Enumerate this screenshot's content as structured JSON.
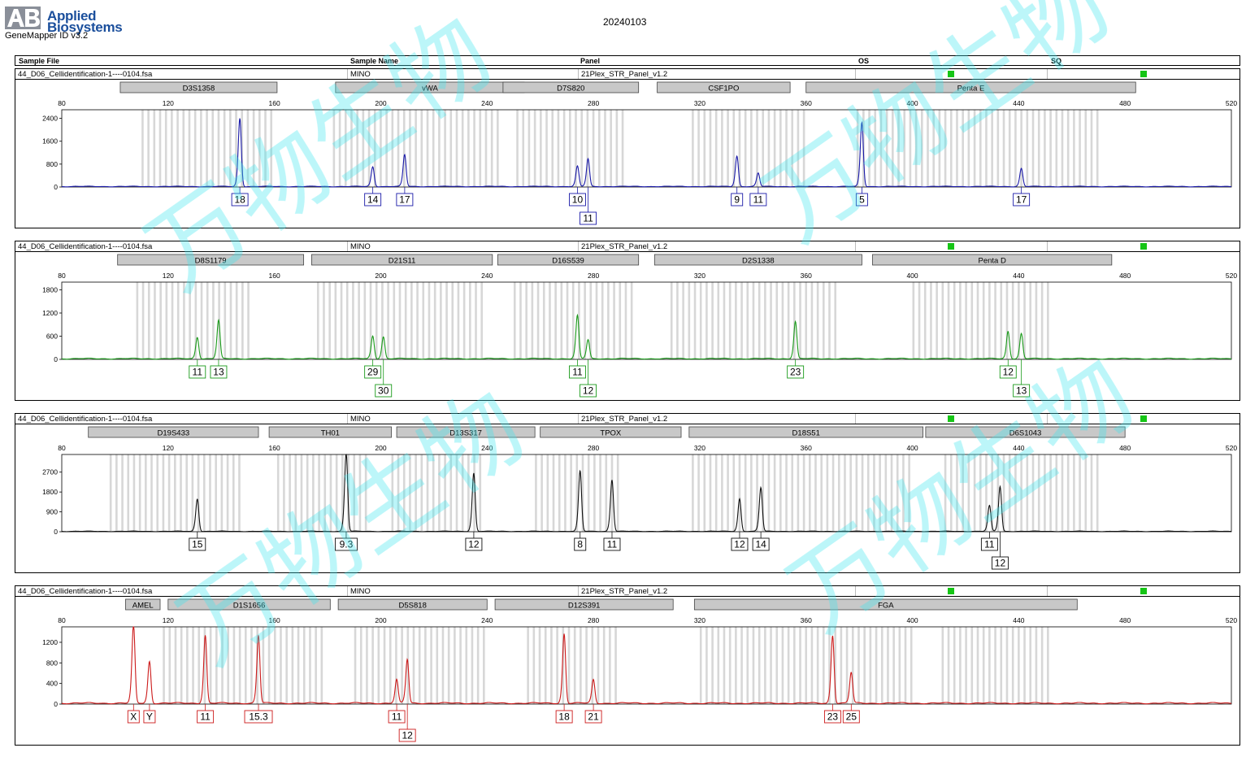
{
  "header": {
    "brand_line1": "Applied",
    "brand_line2": "Biosystems",
    "software": "GeneMapper ID v3.2",
    "date": "20240103"
  },
  "columns": {
    "sample_file": "Sample File",
    "sample_name": "Sample Name",
    "panel": "Panel",
    "os": "OS",
    "sq": "SQ"
  },
  "watermark": "万物生物",
  "colors": {
    "blue": "#1a1aa8",
    "green": "#1a9a1a",
    "black": "#111111",
    "red": "#cc1a1a",
    "flag": "#16c516"
  },
  "chart_data": [
    {
      "type": "line",
      "dye": "blue",
      "sample_file": "44_D06_Cellidentification-1----0104.fsa",
      "sample_name": "MINO",
      "panel": "21Plex_STR_Panel_v1.2",
      "xlim": [
        80,
        520
      ],
      "x_ticks": [
        80,
        120,
        160,
        200,
        240,
        280,
        320,
        360,
        400,
        440,
        480,
        520
      ],
      "ylim": [
        0,
        2700
      ],
      "y_ticks": [
        0,
        800,
        1600,
        2400
      ],
      "markers": [
        {
          "name": "D3S1358",
          "start": 102,
          "end": 161
        },
        {
          "name": "vWA",
          "start": 183,
          "end": 254
        },
        {
          "name": "D7S820",
          "start": 246,
          "end": 297
        },
        {
          "name": "CSF1PO",
          "start": 304,
          "end": 354
        },
        {
          "name": "Penta E",
          "start": 360,
          "end": 484
        }
      ],
      "bin_ranges": [
        [
          110,
          160
        ],
        [
          182,
          244
        ],
        [
          251,
          292
        ],
        [
          317,
          359
        ],
        [
          379,
          470
        ]
      ],
      "peaks": [
        {
          "allele": "18",
          "size": 147,
          "height": 2350
        },
        {
          "allele": "14",
          "size": 197,
          "height": 680
        },
        {
          "allele": "17",
          "size": 209,
          "height": 1100
        },
        {
          "allele": "10",
          "size": 274,
          "height": 700
        },
        {
          "allele": "11",
          "size": 278,
          "height": 950
        },
        {
          "allele": "9",
          "size": 334,
          "height": 1050
        },
        {
          "allele": "11",
          "size": 342,
          "height": 460
        },
        {
          "allele": "5",
          "size": 381,
          "height": 2200
        },
        {
          "allele": "17",
          "size": 441,
          "height": 620
        }
      ]
    },
    {
      "type": "line",
      "dye": "green",
      "sample_file": "44_D06_Cellidentification-1----0104.fsa",
      "sample_name": "MINO",
      "panel": "21Plex_STR_Panel_v1.2",
      "xlim": [
        80,
        520
      ],
      "x_ticks": [
        80,
        120,
        160,
        200,
        240,
        280,
        320,
        360,
        400,
        440,
        480,
        520
      ],
      "ylim": [
        0,
        2000
      ],
      "y_ticks": [
        0,
        600,
        1200,
        1800
      ],
      "markers": [
        {
          "name": "D8S1179",
          "start": 101,
          "end": 171
        },
        {
          "name": "D21S11",
          "start": 174,
          "end": 242
        },
        {
          "name": "D16S539",
          "start": 244,
          "end": 297
        },
        {
          "name": "D2S1338",
          "start": 303,
          "end": 381
        },
        {
          "name": "Penta D",
          "start": 385,
          "end": 475
        }
      ],
      "bin_ranges": [
        [
          108,
          150
        ],
        [
          176,
          238
        ],
        [
          250,
          295
        ],
        [
          309,
          372
        ],
        [
          400,
          452
        ]
      ],
      "peaks": [
        {
          "allele": "11",
          "size": 131,
          "height": 550
        },
        {
          "allele": "13",
          "size": 139,
          "height": 980
        },
        {
          "allele": "29",
          "size": 197,
          "height": 580
        },
        {
          "allele": "30",
          "size": 201,
          "height": 560
        },
        {
          "allele": "11",
          "size": 274,
          "height": 1100
        },
        {
          "allele": "12",
          "size": 278,
          "height": 480
        },
        {
          "allele": "23",
          "size": 356,
          "height": 950
        },
        {
          "allele": "12",
          "size": 436,
          "height": 700
        },
        {
          "allele": "13",
          "size": 441,
          "height": 640
        }
      ]
    },
    {
      "type": "line",
      "dye": "black",
      "sample_file": "44_D06_Cellidentification-1----0104.fsa",
      "sample_name": "MINO",
      "panel": "21Plex_STR_Panel_v1.2",
      "xlim": [
        80,
        520
      ],
      "x_ticks": [
        80,
        120,
        160,
        200,
        240,
        280,
        320,
        360,
        400,
        440,
        480,
        520
      ],
      "ylim": [
        0,
        3500
      ],
      "y_ticks": [
        0,
        900,
        1800,
        2700
      ],
      "markers": [
        {
          "name": "D19S433",
          "start": 90,
          "end": 154
        },
        {
          "name": "TH01",
          "start": 158,
          "end": 204
        },
        {
          "name": "D13S317",
          "start": 206,
          "end": 258
        },
        {
          "name": "TPOX",
          "start": 260,
          "end": 313
        },
        {
          "name": "D18S51",
          "start": 316,
          "end": 404
        },
        {
          "name": "D6S1043",
          "start": 405,
          "end": 480
        }
      ],
      "bin_ranges": [
        [
          98,
          148
        ],
        [
          161,
          196
        ],
        [
          204,
          238
        ],
        [
          258,
          290
        ],
        [
          317,
          400
        ],
        [
          412,
          470
        ]
      ],
      "peaks": [
        {
          "allele": "15",
          "size": 131,
          "height": 1450
        },
        {
          "allele": "9.3",
          "size": 187,
          "height": 3500
        },
        {
          "allele": "12",
          "size": 235,
          "height": 2600
        },
        {
          "allele": "8",
          "size": 275,
          "height": 2700
        },
        {
          "allele": "11",
          "size": 287,
          "height": 2300
        },
        {
          "allele": "12",
          "size": 335,
          "height": 1450
        },
        {
          "allele": "14",
          "size": 343,
          "height": 1950
        },
        {
          "allele": "11",
          "size": 429,
          "height": 1150
        },
        {
          "allele": "12",
          "size": 433,
          "height": 2000
        }
      ]
    },
    {
      "type": "line",
      "dye": "red",
      "sample_file": "44_D06_Cellidentification-1----0104.fsa",
      "sample_name": "MINO",
      "panel": "21Plex_STR_Panel_v1.2",
      "xlim": [
        80,
        520
      ],
      "x_ticks": [
        80,
        120,
        160,
        200,
        240,
        280,
        320,
        360,
        400,
        440,
        480,
        520
      ],
      "ylim": [
        0,
        1500
      ],
      "y_ticks": [
        0,
        400,
        800,
        1200
      ],
      "markers": [
        {
          "name": "AMEL",
          "start": 104,
          "end": 117
        },
        {
          "name": "D1S1656",
          "start": 120,
          "end": 181
        },
        {
          "name": "D5S818",
          "start": 184,
          "end": 240
        },
        {
          "name": "D12S391",
          "start": 243,
          "end": 310
        },
        {
          "name": "FGA",
          "start": 318,
          "end": 462
        }
      ],
      "bin_ranges": [
        [
          118,
          178
        ],
        [
          190,
          240
        ],
        [
          255,
          290
        ],
        [
          320,
          400
        ],
        [
          411,
          451
        ]
      ],
      "peaks": [
        {
          "allele": "X",
          "size": 107,
          "height": 1500
        },
        {
          "allele": "Y",
          "size": 113,
          "height": 800
        },
        {
          "allele": "11",
          "size": 134,
          "height": 1300
        },
        {
          "allele": "15.3",
          "size": 154,
          "height": 1300
        },
        {
          "allele": "11",
          "size": 206,
          "height": 450
        },
        {
          "allele": "12",
          "size": 210,
          "height": 840
        },
        {
          "allele": "18",
          "size": 269,
          "height": 1330
        },
        {
          "allele": "21",
          "size": 280,
          "height": 450
        },
        {
          "allele": "23",
          "size": 370,
          "height": 1300
        },
        {
          "allele": "25",
          "size": 377,
          "height": 590
        }
      ]
    }
  ]
}
